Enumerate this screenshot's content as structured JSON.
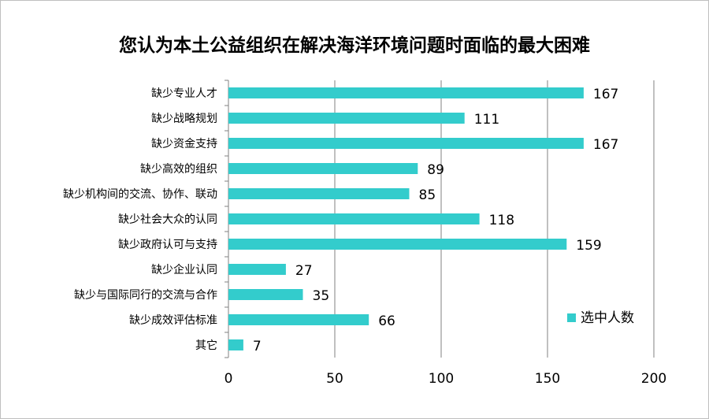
{
  "chart_data": {
    "type": "bar",
    "orientation": "horizontal",
    "title": "您认为本土公益组织在解决海洋环境问题时面临的最大困难",
    "categories": [
      "缺少专业人才",
      "缺少战略规划",
      "缺少资金支持",
      "缺少高效的组织",
      "缺少机构间的交流、协作、联动",
      "缺少社会大众的认同",
      "缺少政府认可与支持",
      "缺少企业认同",
      "缺少与国际同行的交流与合作",
      "缺少成效评估标准",
      "其它"
    ],
    "series": [
      {
        "name": "选中人数",
        "values": [
          167,
          111,
          167,
          89,
          85,
          118,
          159,
          27,
          35,
          66,
          7
        ],
        "color": "#33CCCC"
      }
    ],
    "xlim": [
      0,
      200
    ],
    "xticks": [
      0,
      50,
      100,
      150,
      200
    ],
    "grid": true,
    "legend": "right",
    "gridline_color": "#808080"
  }
}
